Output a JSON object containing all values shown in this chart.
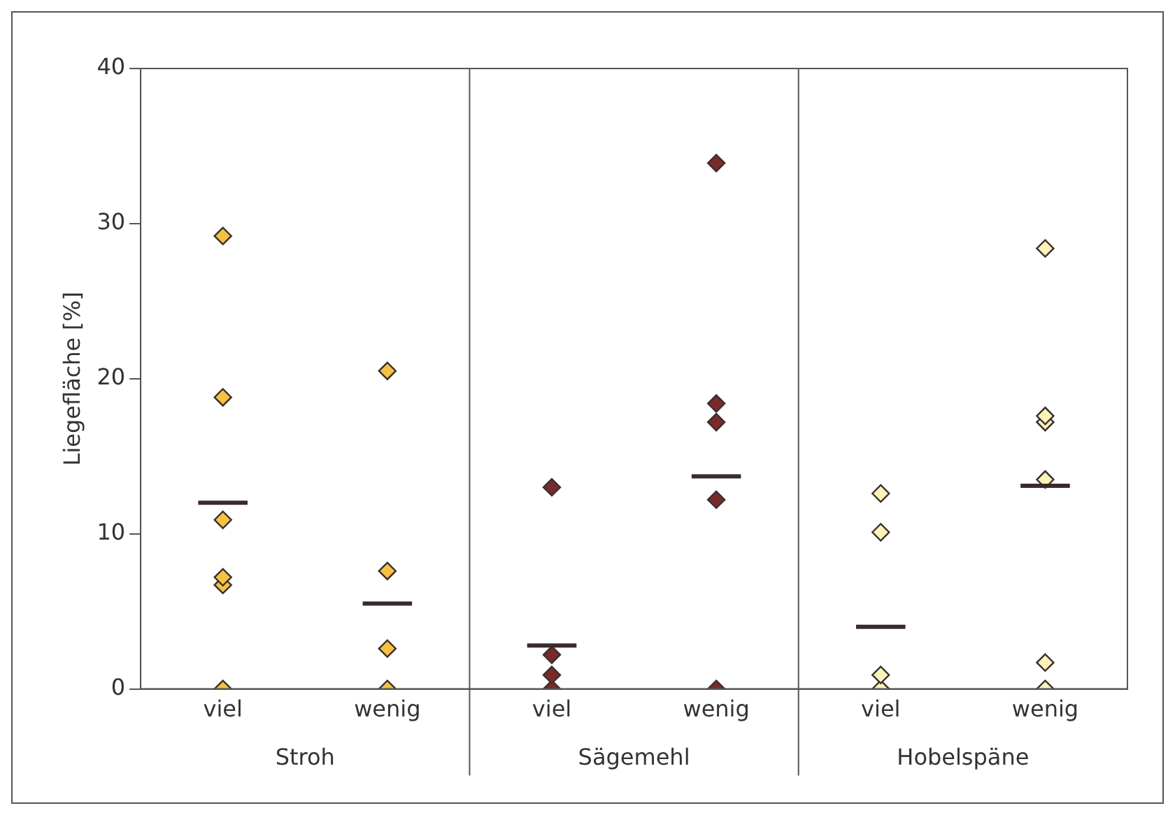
{
  "chart_data": {
    "type": "scatter",
    "ylabel": "Liegefläche [%]",
    "categories": [
      "viel",
      "wenig",
      "viel",
      "wenig",
      "viel",
      "wenig"
    ],
    "annotations": [
      "Stroh",
      "Sägemehl",
      "Hobelspäne"
    ],
    "series": [
      {
        "colors": [
          "#f5c242",
          "#f5c242",
          "#7a2a2a",
          "#7a2a2a",
          "#fbf3b8",
          "#fbf3b8"
        ],
        "values": [
          29.2,
          20.5,
          13.0,
          33.9,
          12.6,
          28.4
        ]
      },
      {
        "colors": [
          "#f5c242",
          "#f5c242",
          "#7a2a2a",
          "#7a2a2a",
          "#fbf3b8",
          "#fbf3b8"
        ],
        "values": [
          18.8,
          7.6,
          2.2,
          18.4,
          10.1,
          17.6
        ]
      },
      {
        "colors": [
          "#f5c242",
          "#f5c242",
          "#7a2a2a",
          "#7a2a2a",
          "#fbf3b8",
          "#fbf3b8"
        ],
        "values": [
          10.9,
          2.6,
          0.9,
          17.2,
          0.9,
          17.2
        ]
      },
      {
        "colors": [
          "#f5c242",
          "#f5c242",
          "#7a2a2a",
          "#7a2a2a",
          "#fbf3b8",
          "#fbf3b8"
        ],
        "values": [
          7.2,
          0,
          0,
          12.2,
          0,
          13.5
        ]
      },
      {
        "colors": [
          "#f5c242",
          "#f5c242",
          "#7a2a2a",
          "#7a2a2a",
          "#fbf3b8",
          "#fbf3b8"
        ],
        "values": [
          6.7,
          null,
          null,
          0,
          null,
          1.7
        ]
      },
      {
        "colors": [
          "#f5c242",
          "#f5c242",
          "#7a2a2a",
          "#7a2a2a",
          "#fbf3b8",
          "#fbf3b8"
        ],
        "values": [
          0,
          null,
          null,
          null,
          null,
          0
        ]
      },
      {
        "type": "box",
        "color": "#3a2a2a",
        "boxes": [
          {
            "low": 12.0,
            "q1": 12.0,
            "median": 12.0,
            "q3": 12.0,
            "high": 12.0
          },
          {
            "low": 5.5,
            "q1": 5.5,
            "median": 5.5,
            "q3": 5.5,
            "high": 5.5
          },
          {
            "low": 2.8,
            "q1": 2.8,
            "median": 2.8,
            "q3": 2.8,
            "high": 2.8
          },
          {
            "low": 13.7,
            "q1": 13.7,
            "median": 13.7,
            "q3": 13.7,
            "high": 13.7
          },
          {
            "low": 4.0,
            "q1": 4.0,
            "median": 4.0,
            "q3": 4.0,
            "high": 4.0
          },
          {
            "low": 13.1,
            "q1": 13.1,
            "median": 13.1,
            "q3": 13.1,
            "high": 13.1
          }
        ]
      }
    ],
    "ylim": [
      0,
      40
    ],
    "yticks": [
      0,
      10,
      20,
      30,
      40
    ],
    "grid": false,
    "legend": false,
    "marker": "diamond"
  }
}
